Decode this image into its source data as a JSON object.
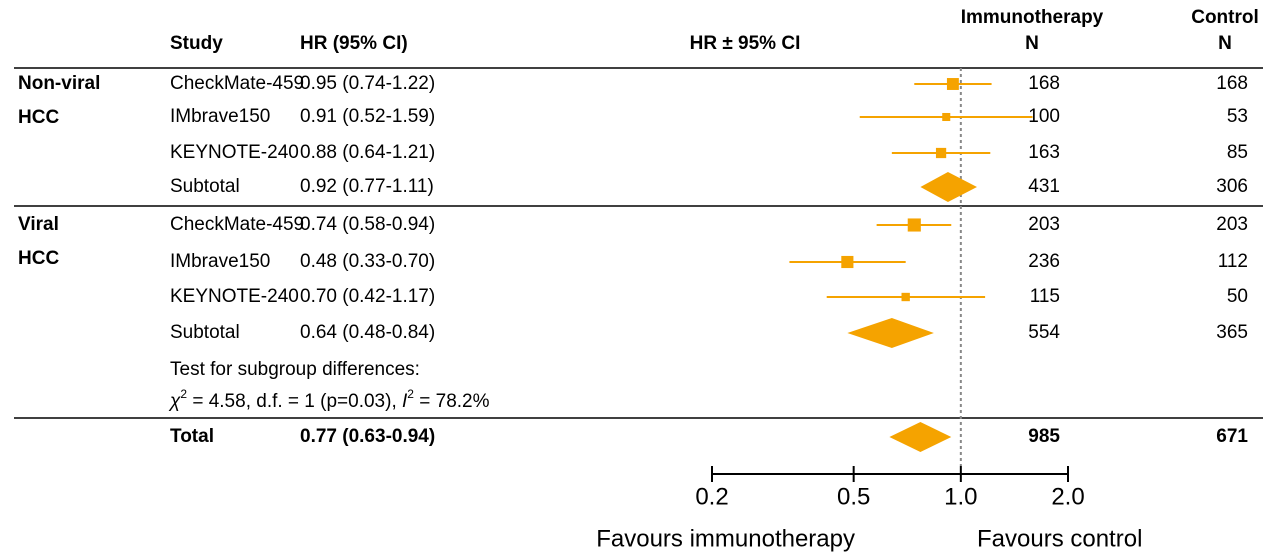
{
  "chart_data": {
    "type": "forest",
    "log_scale": true,
    "color": "#f5a300",
    "headers": {
      "study": "Study",
      "ci": "HR (95% CI)",
      "plot": "HR ± 95% CI",
      "immuno": [
        "Immunotherapy",
        "N"
      ],
      "control": [
        "Control",
        "N"
      ]
    },
    "groups": [
      {
        "label": [
          "Non-viral",
          "HCC"
        ],
        "rows": [
          {
            "study": "CheckMate-459",
            "ci_label": "0.95 (0.74-1.22)",
            "hr": 0.95,
            "lower": 0.74,
            "upper": 1.22,
            "n_immuno": 168,
            "n_control": 168,
            "marker": "square"
          },
          {
            "study": "IMbrave150",
            "ci_label": "0.91 (0.52-1.59)",
            "hr": 0.91,
            "lower": 0.52,
            "upper": 1.59,
            "n_immuno": 100,
            "n_control": 53,
            "marker": "square"
          },
          {
            "study": "KEYNOTE-240",
            "ci_label": "0.88 (0.64-1.21)",
            "hr": 0.88,
            "lower": 0.64,
            "upper": 1.21,
            "n_immuno": 163,
            "n_control": 85,
            "marker": "square"
          },
          {
            "study": "Subtotal",
            "ci_label": "0.92 (0.77-1.11)",
            "hr": 0.92,
            "lower": 0.77,
            "upper": 1.11,
            "n_immuno": 431,
            "n_control": 306,
            "marker": "diamond"
          }
        ]
      },
      {
        "label": [
          "Viral",
          "HCC"
        ],
        "rows": [
          {
            "study": "CheckMate-459",
            "ci_label": "0.74 (0.58-0.94)",
            "hr": 0.74,
            "lower": 0.58,
            "upper": 0.94,
            "n_immuno": 203,
            "n_control": 203,
            "marker": "square"
          },
          {
            "study": "IMbrave150",
            "ci_label": "0.48 (0.33-0.70)",
            "hr": 0.48,
            "lower": 0.33,
            "upper": 0.7,
            "n_immuno": 236,
            "n_control": 112,
            "marker": "square"
          },
          {
            "study": "KEYNOTE-240",
            "ci_label": "0.70 (0.42-1.17)",
            "hr": 0.7,
            "lower": 0.42,
            "upper": 1.17,
            "n_immuno": 115,
            "n_control": 50,
            "marker": "square"
          },
          {
            "study": "Subtotal",
            "ci_label": "0.64 (0.48-0.84)",
            "hr": 0.64,
            "lower": 0.48,
            "upper": 0.84,
            "n_immuno": 554,
            "n_control": 365,
            "marker": "diamond"
          }
        ]
      }
    ],
    "note": {
      "line1": "Test for subgroup differences:",
      "chi": "χ",
      "sup1": "2",
      "text1": " = 4.58, d.f. = 1 (p=0.03), ",
      "i": "I",
      "sup2": "2",
      "text2": " = 78.2%"
    },
    "total": {
      "study": "Total",
      "ci_label": "0.77 (0.63-0.94)",
      "hr": 0.77,
      "lower": 0.63,
      "upper": 0.94,
      "n_immuno": 985,
      "n_control": 671,
      "marker": "diamond"
    },
    "reference_line": 1,
    "xlim": [
      0.2,
      2.0
    ],
    "xticks": [
      0.2,
      0.5,
      {
        "value": 1.0,
        "label": "1.0"
      },
      {
        "value": 2.0,
        "label": "2.0"
      }
    ],
    "xlabel_left": "Favours immunotherapy",
    "xlabel_right": "Favours control"
  }
}
